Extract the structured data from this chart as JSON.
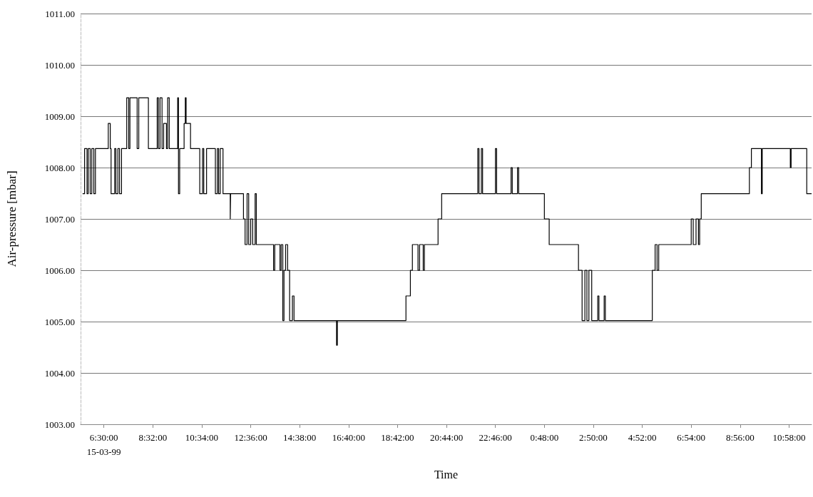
{
  "chart_data": {
    "type": "step",
    "xlabel": "Time",
    "ylabel": "Air-pressure [mbar]",
    "color": "#000000",
    "marker": "none",
    "grid": "y",
    "x": [
      "1999-03-15T05:37",
      "1999-03-15T05:42",
      "1999-03-15T05:48",
      "1999-03-15T05:51",
      "1999-03-15T05:56",
      "1999-03-15T06:00",
      "1999-03-15T06:05",
      "1999-03-15T06:09",
      "1999-03-15T06:41",
      "1999-03-15T06:46",
      "1999-03-15T06:48",
      "1999-03-15T06:57",
      "1999-03-15T07:00",
      "1999-03-15T07:05",
      "1999-03-15T07:09",
      "1999-03-15T07:14",
      "1999-03-15T07:27",
      "1999-03-15T07:32",
      "1999-03-15T07:35",
      "1999-03-15T07:53",
      "1999-03-15T07:57",
      "1999-03-15T08:21",
      "1999-03-15T08:43",
      "1999-03-15T08:46",
      "1999-03-15T08:50",
      "1999-03-15T08:55",
      "1999-03-15T08:59",
      "1999-03-15T09:06",
      "1999-03-15T09:09",
      "1999-03-15T09:13",
      "1999-03-15T09:34",
      "1999-03-15T09:36",
      "1999-03-15T09:39",
      "1999-03-15T09:50",
      "1999-03-15T09:53",
      "1999-03-15T09:55",
      "1999-03-15T10:06",
      "1999-03-15T10:29",
      "1999-03-15T10:36",
      "1999-03-15T10:39",
      "1999-03-15T10:46",
      "1999-03-15T11:08",
      "1999-03-15T11:13",
      "1999-03-15T11:16",
      "1999-03-15T11:20",
      "1999-03-15T11:27",
      "1999-03-15T11:45",
      "1999-03-15T11:46",
      "1999-03-15T12:18",
      "1999-03-15T12:22",
      "1999-03-15T12:27",
      "1999-03-15T12:31",
      "1999-03-15T12:36",
      "1999-03-15T12:41",
      "1999-03-15T12:47",
      "1999-03-15T12:50",
      "1999-03-15T13:33",
      "1999-03-15T13:36",
      "1999-03-15T13:49",
      "1999-03-15T13:52",
      "1999-03-15T13:56",
      "1999-03-15T13:59",
      "1999-03-15T14:03",
      "1999-03-15T14:08",
      "1999-03-15T14:13",
      "1999-03-15T14:20",
      "1999-03-15T14:24",
      "1999-03-15T16:10",
      "1999-03-15T16:12",
      "1999-03-15T19:03",
      "1999-03-15T19:14",
      "1999-03-15T19:19",
      "1999-03-15T19:33",
      "1999-03-15T19:37",
      "1999-03-15T19:46",
      "1999-03-15T19:49",
      "1999-03-15T20:23",
      "1999-03-15T20:32",
      "1999-03-15T22:02",
      "1999-03-15T22:05",
      "1999-03-15T22:11",
      "1999-03-15T22:14",
      "1999-03-15T22:46",
      "1999-03-15T22:49",
      "1999-03-15T23:25",
      "1999-03-15T23:28",
      "1999-03-15T23:41",
      "1999-03-15T23:44",
      "1999-03-16T00:48",
      "1999-03-16T01:00",
      "1999-03-16T02:13",
      "1999-03-16T02:22",
      "1999-03-16T02:29",
      "1999-03-16T02:34",
      "1999-03-16T02:39",
      "1999-03-16T02:46",
      "1999-03-16T03:01",
      "1999-03-16T03:04",
      "1999-03-16T03:17",
      "1999-03-16T03:20",
      "1999-03-16T05:17",
      "1999-03-16T05:24",
      "1999-03-16T05:29",
      "1999-03-16T05:33",
      "1999-03-16T06:54",
      "1999-03-16T06:59",
      "1999-03-16T07:06",
      "1999-03-16T07:12",
      "1999-03-16T07:15",
      "1999-03-16T07:19",
      "1999-03-16T09:19",
      "1999-03-16T09:24",
      "1999-03-16T09:49",
      "1999-03-16T09:51",
      "1999-03-16T11:01",
      "1999-03-16T11:03",
      "1999-03-16T11:42",
      "1999-03-16T11:54"
    ],
    "values": [
      1007.49,
      1008.37,
      1007.49,
      1008.37,
      1007.49,
      1008.37,
      1007.49,
      1008.37,
      1008.86,
      1008.37,
      1007.49,
      1008.37,
      1007.49,
      1008.37,
      1007.49,
      1008.37,
      1009.36,
      1008.37,
      1009.36,
      1008.37,
      1009.36,
      1008.37,
      1009.36,
      1008.37,
      1009.36,
      1008.37,
      1008.86,
      1008.37,
      1009.36,
      1008.37,
      1009.36,
      1007.49,
      1008.37,
      1008.86,
      1009.36,
      1008.86,
      1008.37,
      1007.49,
      1008.37,
      1007.49,
      1008.37,
      1007.49,
      1008.37,
      1007.49,
      1008.37,
      1007.49,
      1007.0,
      1007.49,
      1007.0,
      1006.5,
      1007.49,
      1006.5,
      1007.0,
      1006.5,
      1007.49,
      1006.5,
      1006.0,
      1006.5,
      1006.0,
      1006.5,
      1005.02,
      1006.0,
      1006.5,
      1006.0,
      1005.02,
      1005.5,
      1005.02,
      1004.54,
      1005.02,
      1005.5,
      1006.0,
      1006.5,
      1006.0,
      1006.5,
      1006.0,
      1006.5,
      1007.0,
      1007.49,
      1008.37,
      1007.49,
      1008.37,
      1007.49,
      1008.37,
      1007.49,
      1008.0,
      1007.49,
      1008.0,
      1007.49,
      1007.0,
      1006.5,
      1006.0,
      1005.02,
      1006.0,
      1005.02,
      1006.0,
      1005.02,
      1005.5,
      1005.02,
      1005.5,
      1005.02,
      1006.0,
      1006.5,
      1006.0,
      1006.5,
      1007.0,
      1006.5,
      1007.0,
      1006.5,
      1007.0,
      1007.49,
      1008.0,
      1008.37,
      1007.49,
      1008.37,
      1008.0,
      1008.37,
      1007.49,
      1007.49
    ],
    "xlim": [
      "1999-03-15T05:32",
      "1999-03-16T11:54"
    ],
    "xticks": [
      {
        "value": "1999-03-15T06:30",
        "label": "6:30:00\n15-03-99"
      },
      {
        "value": "1999-03-15T08:32",
        "label": "8:32:00"
      },
      {
        "value": "1999-03-15T10:34",
        "label": "10:34:00"
      },
      {
        "value": "1999-03-15T12:36",
        "label": "12:36:00"
      },
      {
        "value": "1999-03-15T14:38",
        "label": "14:38:00"
      },
      {
        "value": "1999-03-15T16:40",
        "label": "16:40:00"
      },
      {
        "value": "1999-03-15T18:42",
        "label": "18:42:00"
      },
      {
        "value": "1999-03-15T20:44",
        "label": "20:44:00"
      },
      {
        "value": "1999-03-15T22:46",
        "label": "22:46:00"
      },
      {
        "value": "1999-03-16T00:48",
        "label": "0:48:00"
      },
      {
        "value": "1999-03-16T02:50",
        "label": "2:50:00"
      },
      {
        "value": "1999-03-16T04:52",
        "label": "4:52:00"
      },
      {
        "value": "1999-03-16T06:54",
        "label": "6:54:00"
      },
      {
        "value": "1999-03-16T08:56",
        "label": "8:56:00"
      },
      {
        "value": "1999-03-16T10:58",
        "label": "10:58:00"
      }
    ],
    "ylim": [
      1003,
      1011
    ],
    "yticks": [
      {
        "value": 1003,
        "label": "1003.00"
      },
      {
        "value": 1004,
        "label": "1004.00"
      },
      {
        "value": 1005,
        "label": "1005.00"
      },
      {
        "value": 1006,
        "label": "1006.00"
      },
      {
        "value": 1007,
        "label": "1007.00"
      },
      {
        "value": 1008,
        "label": "1008.00"
      },
      {
        "value": 1009,
        "label": "1009.00"
      },
      {
        "value": 1010,
        "label": "1010.00"
      },
      {
        "value": 1011,
        "label": "1011.00"
      }
    ]
  }
}
